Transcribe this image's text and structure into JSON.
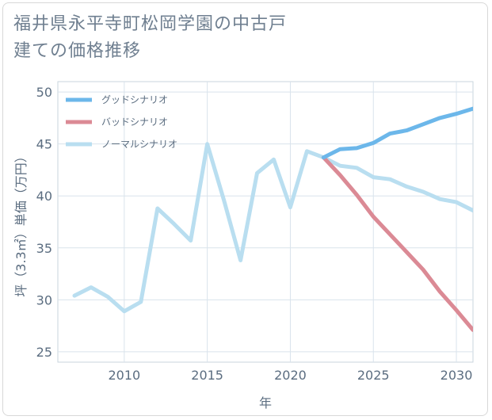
{
  "chart_data": {
    "type": "line",
    "title": "福井県永平寺町松岡学園の中古戸建ての価格推移",
    "xlabel": "年",
    "ylabel": "坪（3.3㎡）単価（万円）",
    "xlim": [
      2006,
      2031
    ],
    "ylim": [
      24,
      51
    ],
    "xticks": [
      2010,
      2015,
      2020,
      2025,
      2030
    ],
    "yticks": [
      25,
      30,
      35,
      40,
      45,
      50
    ],
    "grid": true,
    "legend_position": "top-left",
    "series": [
      {
        "name": "グッドシナリオ",
        "color": "#6cb7ea",
        "x": [
          2022,
          2023,
          2024,
          2025,
          2026,
          2027,
          2028,
          2029,
          2030,
          2031
        ],
        "y": [
          43.7,
          44.5,
          44.6,
          45.1,
          46.0,
          46.3,
          46.9,
          47.5,
          47.9,
          48.4
        ]
      },
      {
        "name": "バッドシナリオ",
        "color": "#db8a95",
        "x": [
          2022,
          2023,
          2024,
          2025,
          2026,
          2027,
          2028,
          2029,
          2030,
          2031
        ],
        "y": [
          43.7,
          42.0,
          40.1,
          38.0,
          36.3,
          34.6,
          32.9,
          30.8,
          29.0,
          27.1
        ]
      },
      {
        "name": "ノーマルシナリオ",
        "color": "#b9def0",
        "x": [
          2007,
          2008,
          2009,
          2010,
          2011,
          2012,
          2013,
          2014,
          2015,
          2016,
          2017,
          2018,
          2019,
          2020,
          2021,
          2022,
          2023,
          2024,
          2025,
          2026,
          2027,
          2028,
          2029,
          2030,
          2031
        ],
        "y": [
          30.4,
          31.2,
          30.3,
          28.9,
          29.8,
          38.8,
          37.3,
          35.7,
          45.0,
          39.6,
          33.8,
          42.2,
          43.5,
          38.9,
          44.3,
          43.7,
          42.9,
          42.7,
          41.8,
          41.6,
          40.9,
          40.4,
          39.7,
          39.4,
          38.6
        ]
      }
    ]
  }
}
